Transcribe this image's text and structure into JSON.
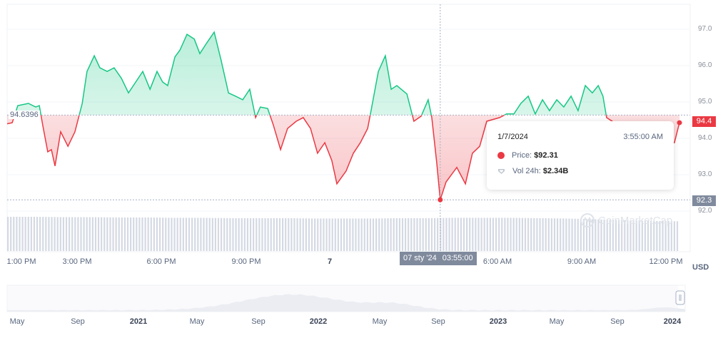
{
  "chart_data": {
    "type": "area",
    "title": "",
    "currency_label": "USD",
    "baseline": 94.6396,
    "baseline_label": "94.6396",
    "colors": {
      "up": "#16c784",
      "down": "#ea3943",
      "crosshair_label": "#808a9d"
    },
    "ylim": [
      92.0,
      97.1
    ],
    "xlim_hours": [
      0,
      24
    ],
    "y_ticks": [
      "97.0",
      "96.0",
      "95.0",
      "94.0",
      "93.0",
      "92.0"
    ],
    "x_ticks": [
      "1:00 PM",
      "3:00 PM",
      "6:00 PM",
      "9:00 PM",
      "7",
      "6:00 AM",
      "9:00 AM",
      "12:00 PM"
    ],
    "current_price_label": "94.4",
    "crosshair_price_label": "92.3",
    "crosshair_date": "07 sty '24",
    "crosshair_time": "03:55:00",
    "series": [
      [
        0,
        94.4
      ],
      [
        0.18,
        94.43
      ],
      [
        0.38,
        94.9
      ],
      [
        0.76,
        94.96
      ],
      [
        1.02,
        94.86
      ],
      [
        1.15,
        94.9
      ],
      [
        1.27,
        94.37
      ],
      [
        1.45,
        93.63
      ],
      [
        1.58,
        93.69
      ],
      [
        1.71,
        93.24
      ],
      [
        1.91,
        94.18
      ],
      [
        2.17,
        93.78
      ],
      [
        2.42,
        94.18
      ],
      [
        2.68,
        94.96
      ],
      [
        2.85,
        95.84
      ],
      [
        3.11,
        96.27
      ],
      [
        3.31,
        95.94
      ],
      [
        3.57,
        95.84
      ],
      [
        3.82,
        95.94
      ],
      [
        4.08,
        95.65
      ],
      [
        4.33,
        95.25
      ],
      [
        4.59,
        95.55
      ],
      [
        4.84,
        95.84
      ],
      [
        5.1,
        95.35
      ],
      [
        5.35,
        95.84
      ],
      [
        5.55,
        95.55
      ],
      [
        5.73,
        95.45
      ],
      [
        5.99,
        96.24
      ],
      [
        6.17,
        96.43
      ],
      [
        6.42,
        96.86
      ],
      [
        6.68,
        96.73
      ],
      [
        6.88,
        96.33
      ],
      [
        7.13,
        96.63
      ],
      [
        7.39,
        96.92
      ],
      [
        7.64,
        96.14
      ],
      [
        7.9,
        95.25
      ],
      [
        8.15,
        95.16
      ],
      [
        8.41,
        95.06
      ],
      [
        8.66,
        95.35
      ],
      [
        8.87,
        94.57
      ],
      [
        9.04,
        94.86
      ],
      [
        9.3,
        94.82
      ],
      [
        9.5,
        94.37
      ],
      [
        9.76,
        93.69
      ],
      [
        10.01,
        94.27
      ],
      [
        10.32,
        94.47
      ],
      [
        10.57,
        94.57
      ],
      [
        10.83,
        94.27
      ],
      [
        11.08,
        93.59
      ],
      [
        11.34,
        93.88
      ],
      [
        11.59,
        93.39
      ],
      [
        11.77,
        92.75
      ],
      [
        12.1,
        93.1
      ],
      [
        12.36,
        93.59
      ],
      [
        12.61,
        93.88
      ],
      [
        12.87,
        94.27
      ],
      [
        12.99,
        94.76
      ],
      [
        13.25,
        95.84
      ],
      [
        13.5,
        96.27
      ],
      [
        13.71,
        95.35
      ],
      [
        13.91,
        95.45
      ],
      [
        14.27,
        95.22
      ],
      [
        14.52,
        94.47
      ],
      [
        14.78,
        94.61
      ],
      [
        15.03,
        95.06
      ],
      [
        15.16,
        94.57
      ],
      [
        15.34,
        93.29
      ],
      [
        15.46,
        92.31
      ],
      [
        15.67,
        92.8
      ],
      [
        16.05,
        93.2
      ],
      [
        16.36,
        92.75
      ],
      [
        16.61,
        93.59
      ],
      [
        16.87,
        93.78
      ],
      [
        17.12,
        94.47
      ],
      [
        17.58,
        94.57
      ],
      [
        17.83,
        94.67
      ],
      [
        18.09,
        94.67
      ],
      [
        18.34,
        94.96
      ],
      [
        18.6,
        95.16
      ],
      [
        18.85,
        94.67
      ],
      [
        19.11,
        95.06
      ],
      [
        19.36,
        94.76
      ],
      [
        19.62,
        95.06
      ],
      [
        19.87,
        94.86
      ],
      [
        20.13,
        95.16
      ],
      [
        20.38,
        94.76
      ],
      [
        20.64,
        95.45
      ],
      [
        20.89,
        95.25
      ],
      [
        21.1,
        95.45
      ],
      [
        21.27,
        95.16
      ],
      [
        21.4,
        94.57
      ],
      [
        22.17,
        94.18
      ],
      [
        22.93,
        94.37
      ],
      [
        23.69,
        93.88
      ],
      [
        23.82,
        93.88
      ],
      [
        24,
        94.43
      ]
    ],
    "volume_relative": [
      1,
      1,
      0.99,
      0.99,
      0.98,
      0.98,
      0.97,
      0.97,
      0.96,
      0.96,
      0.96,
      0.95,
      0.95,
      0.95,
      0.96,
      0.96,
      0.97,
      0.97,
      0.97,
      0.96,
      0.95,
      0.93,
      0.9,
      0.88,
      0.87
    ],
    "selected_hour": 15.46,
    "navigator": {
      "ticks": [
        {
          "label": "May",
          "bold": false
        },
        {
          "label": "Sep",
          "bold": false
        },
        {
          "label": "2021",
          "bold": true
        },
        {
          "label": "May",
          "bold": false
        },
        {
          "label": "Sep",
          "bold": false
        },
        {
          "label": "2022",
          "bold": true
        },
        {
          "label": "May",
          "bold": false
        },
        {
          "label": "Sep",
          "bold": false
        },
        {
          "label": "2023",
          "bold": true
        },
        {
          "label": "May",
          "bold": false
        },
        {
          "label": "Sep",
          "bold": false
        },
        {
          "label": "2024",
          "bold": true
        }
      ]
    }
  },
  "tooltip": {
    "date": "1/7/2024",
    "time": "3:55:00 AM",
    "price_label": "Price:",
    "price_value": "$92.31",
    "vol_label": "Vol 24h:",
    "vol_value": "$2.34B"
  },
  "watermark": "CoinMarketCap"
}
